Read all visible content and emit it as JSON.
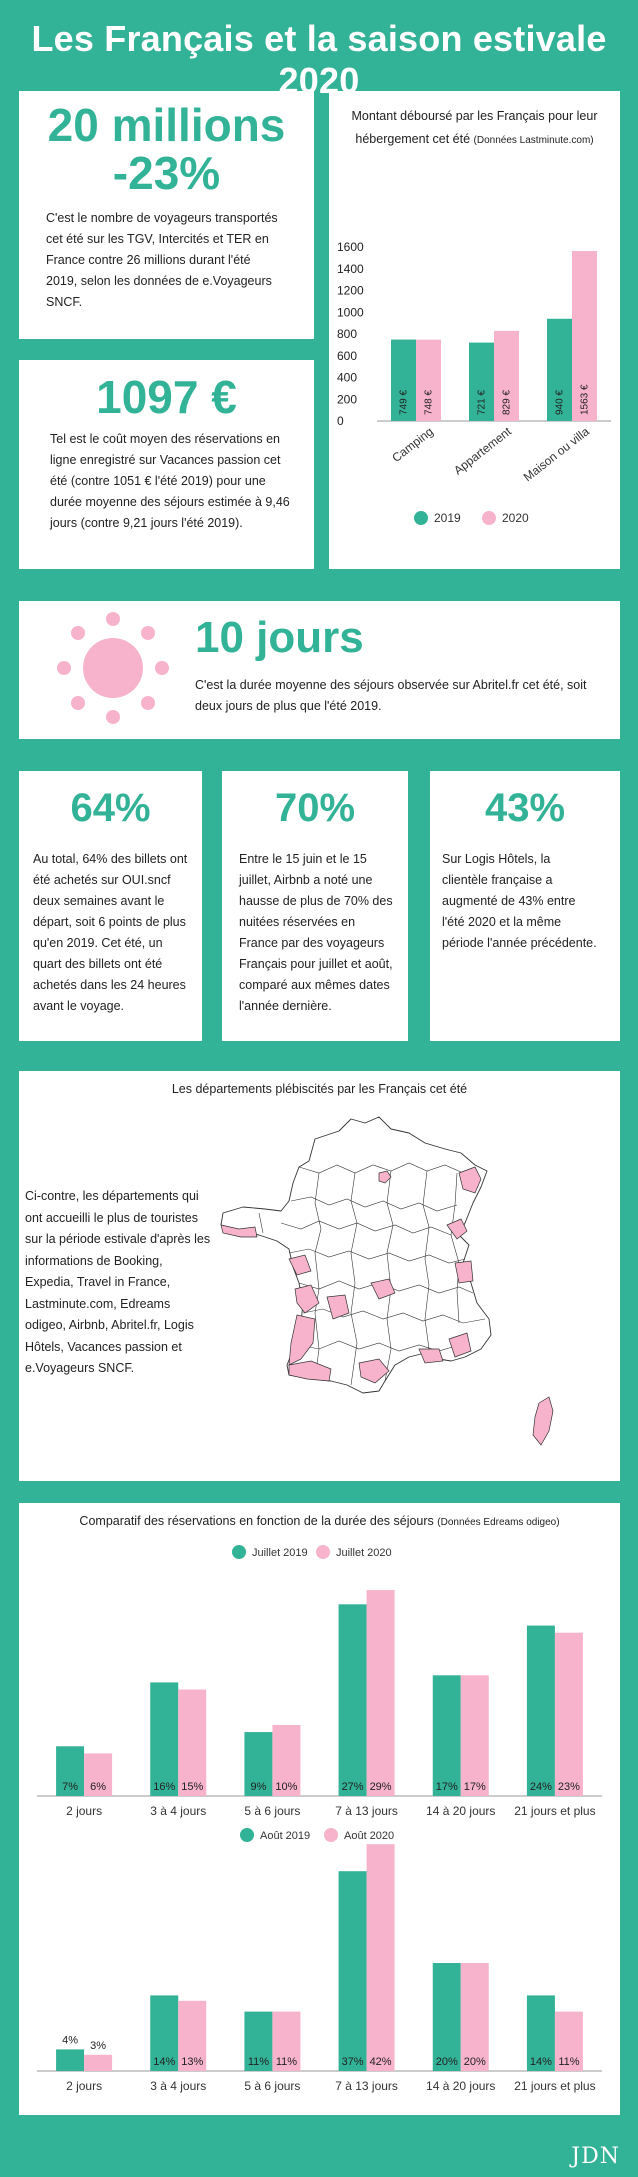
{
  "header": {
    "title": "Les Français et la saison estivale 2020"
  },
  "card_travellers": {
    "number": "20 millions",
    "change": "-23%",
    "text": "C'est le nombre de voyageurs transportés cet été sur les TGV, Intercités et TER en France contre 26 millions durant l'été 2019, selon les données de e.Voyageurs SNCF."
  },
  "card_cost": {
    "number": "1097 €",
    "text": "Tel est le coût moyen des réservations en ligne enregistré sur Vacances passion cet été (contre 1051 € l'été 2019) pour une durée moyenne des séjours estimée à 9,46 jours (contre 9,21 jours l'été 2019)."
  },
  "card_duration": {
    "icon": "sun-icon",
    "number": "10 jours",
    "text": "C'est la durée moyenne des séjours observée sur Abritel.fr cet été, soit deux jours de plus que l'été 2019."
  },
  "stats": [
    {
      "number": "64%",
      "text": "Au total, 64% des billets ont été achetés sur OUI.sncf deux semaines avant le départ, soit 6 points de plus qu'en 2019.  Cet été, un quart des billets ont été achetés dans les 24 heures avant le voyage."
    },
    {
      "number": "70%",
      "text": "Entre le 15 juin et le 15 juillet,  Airbnb a noté une hausse de plus de 70% des nuitées réservées en France par des voyageurs Français pour juillet et août, comparé aux mêmes dates l'année dernière."
    },
    {
      "number": "43%",
      "text": "Sur Logis Hôtels, la clientèle française a augmenté de 43% entre l'été 2020 et la même période l'année précédente."
    }
  ],
  "map": {
    "title": "Les départements plébiscités par les Français cet été",
    "text": "Ci-contre, les départements qui ont accueilli le plus de touristes sur la période estivale d'après les informations de Booking, Expedia, Travel in France, Lastminute.com, Edreams odigeo, Airbnb, Abritel.fr, Logis Hôtels, Vacances passion et e.Voyageurs SNCF.",
    "highlight_color": "#f7b3cb"
  },
  "colors": {
    "green": "#32b296",
    "pink": "#f7b3cb"
  },
  "chart_data": [
    {
      "type": "bar",
      "title": "Montant déboursé par les Français pour leur hébergement cet été",
      "source": "(Données Lastminute.com)",
      "categories": [
        "Camping",
        "Appartement",
        "Maison ou villa"
      ],
      "series": [
        {
          "name": "2019",
          "values": [
            749,
            721,
            940
          ],
          "labels": [
            "749 €",
            "721 €",
            "940 €"
          ]
        },
        {
          "name": "2020",
          "values": [
            748,
            829,
            1563
          ],
          "labels": [
            "748 €",
            "829 €",
            "1563 €"
          ]
        }
      ],
      "y_ticks": [
        0,
        200,
        400,
        600,
        800,
        1000,
        1200,
        1400,
        1600
      ],
      "ylim": [
        0,
        1600
      ],
      "legend_position": "bottom"
    },
    {
      "type": "bar",
      "title": "Comparatif des réservations en fonction de la durée des séjours",
      "source": "(Données Edreams odigeo)",
      "categories": [
        "2 jours",
        "3 à 4 jours",
        "5 à 6 jours",
        "7 à 13 jours",
        "14 à 20 jours",
        "21 jours et plus"
      ],
      "series": [
        {
          "name": "Juillet 2019",
          "values": [
            7,
            16,
            9,
            27,
            17,
            24
          ],
          "labels": [
            "7%",
            "16%",
            "9%",
            "27%",
            "17%",
            "24%"
          ]
        },
        {
          "name": "Juillet 2020",
          "values": [
            6,
            15,
            10,
            29,
            17,
            23
          ],
          "labels": [
            "6%",
            "15%",
            "10%",
            "29%",
            "17%",
            "23%"
          ]
        }
      ],
      "legend_position": "top"
    },
    {
      "type": "bar",
      "categories": [
        "2 jours",
        "3 à 4 jours",
        "5 à 6 jours",
        "7 à 13 jours",
        "14 à 20 jours",
        "21 jours et plus"
      ],
      "series": [
        {
          "name": "Août 2019",
          "values": [
            4,
            14,
            11,
            37,
            20,
            14
          ],
          "labels": [
            "4%",
            "14%",
            "11%",
            "37%",
            "20%",
            "14%"
          ]
        },
        {
          "name": "Août 2020",
          "values": [
            3,
            13,
            11,
            42,
            20,
            11
          ],
          "labels": [
            "3%",
            "13%",
            "11%",
            "42%",
            "20%",
            "11%"
          ]
        }
      ],
      "legend_position": "top"
    }
  ],
  "footer": {
    "logo": "JDN"
  }
}
